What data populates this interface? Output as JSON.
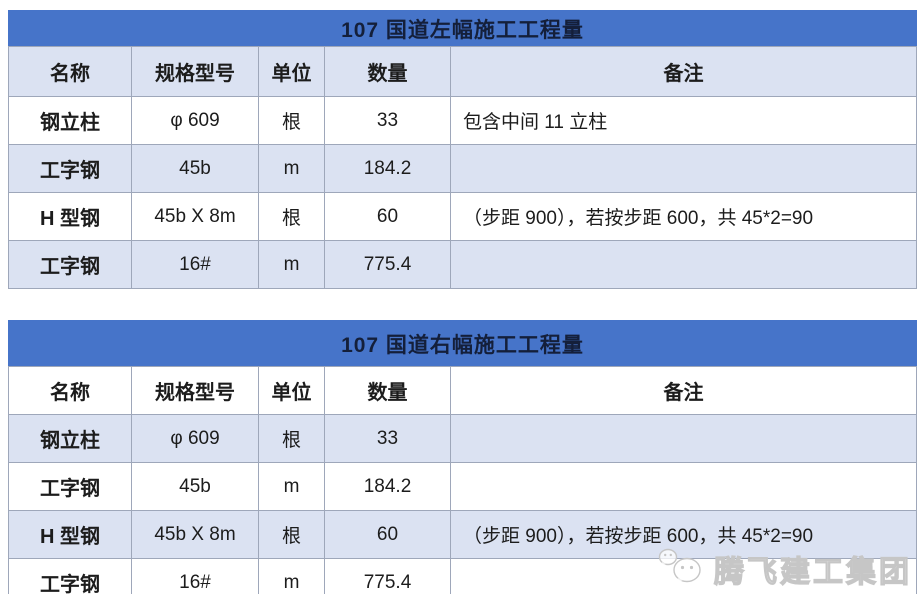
{
  "colors": {
    "title_bar_blue": "#4674c9",
    "title_text": "#141f3a",
    "shaded_row_blue": "#dbe2f2",
    "grid_border": "#9ea7ba",
    "body_text": "#1c1c1c",
    "watermark_gray": "#c6c6c6"
  },
  "columns": [
    "名称",
    "规格型号",
    "单位",
    "数量",
    "备注"
  ],
  "tables": [
    {
      "title": "107 国道左幅施工工程量",
      "header_shaded": true,
      "rows": [
        {
          "name": "钢立柱",
          "spec": "φ 609",
          "unit": "根",
          "qty": "33",
          "note": "包含中间 11 立柱",
          "shaded": false
        },
        {
          "name": "工字钢",
          "spec": "45b",
          "unit": "m",
          "qty": "184.2",
          "note": "",
          "shaded": true
        },
        {
          "name": "H 型钢",
          "spec": "45b X 8m",
          "unit": "根",
          "qty": "60",
          "note": "（步距 900），若按步距 600，共 45*2=90",
          "shaded": false
        },
        {
          "name": "工字钢",
          "spec": "16#",
          "unit": "m",
          "qty": "775.4",
          "note": "",
          "shaded": true
        }
      ]
    },
    {
      "title": "107 国道右幅施工工程量",
      "header_shaded": false,
      "rows": [
        {
          "name": "钢立柱",
          "spec": "φ 609",
          "unit": "根",
          "qty": "33",
          "note": "",
          "shaded": true
        },
        {
          "name": "工字钢",
          "spec": "45b",
          "unit": "m",
          "qty": "184.2",
          "note": "",
          "shaded": false
        },
        {
          "name": "H 型钢",
          "spec": "45b X 8m",
          "unit": "根",
          "qty": "60",
          "note": "（步距 900），若按步距 600，共 45*2=90",
          "shaded": true
        },
        {
          "name": "工字钢",
          "spec": "16#",
          "unit": "m",
          "qty": "775.4",
          "note": "",
          "shaded": false
        }
      ]
    }
  ],
  "watermark": {
    "label": "腾飞建工集团",
    "icon": "wechat-chat-bubbles-icon"
  }
}
